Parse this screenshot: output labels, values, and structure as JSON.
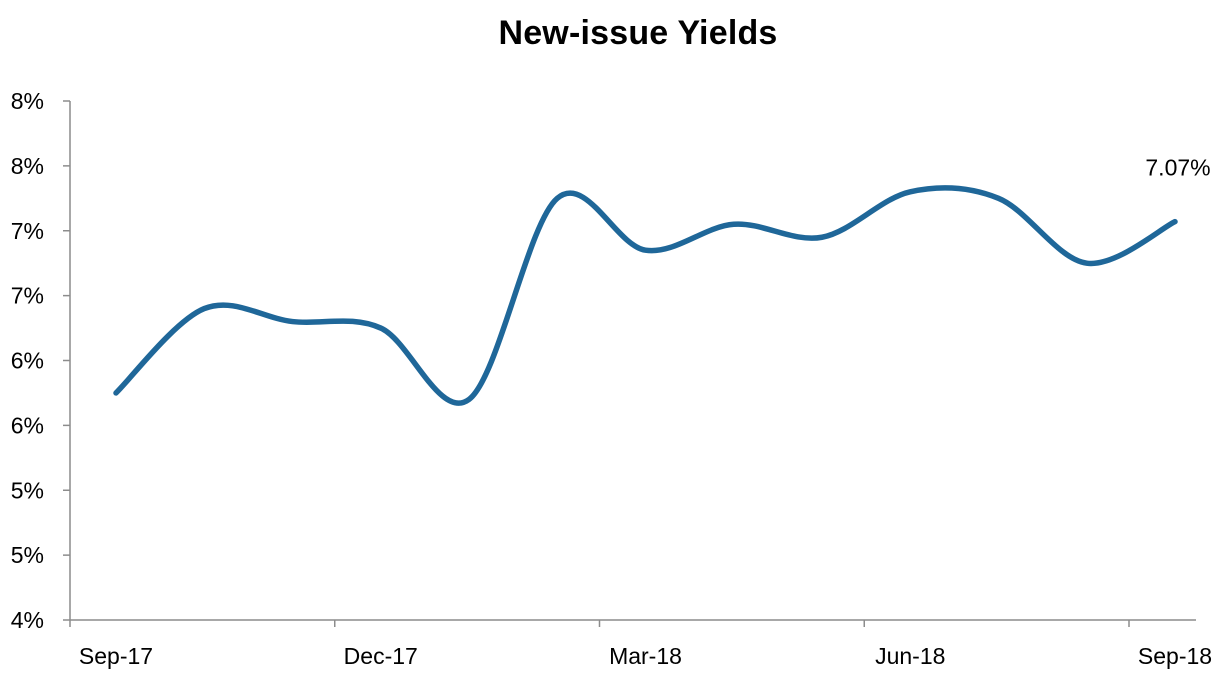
{
  "chart_data": {
    "type": "line",
    "title": "New-issue Yields",
    "xlabel": "",
    "ylabel": "",
    "x_tick_labels": [
      "Sep-17",
      "Dec-17",
      "Mar-18",
      "Jun-18",
      "Sep-18"
    ],
    "y_tick_labels": [
      "4%",
      "5%",
      "5%",
      "6%",
      "6%",
      "7%",
      "7%",
      "8%",
      "8%"
    ],
    "ylim": [
      4,
      8
    ],
    "grid": false,
    "legend": "none",
    "series": [
      {
        "color": "#1f6799",
        "x": [
          "Sep-17",
          "Oct-17",
          "Nov-17",
          "Dec-17",
          "Jan-18",
          "Feb-18",
          "Mar-18",
          "Apr-18",
          "May-18",
          "Jun-18",
          "Jul-18",
          "Aug-18",
          "Sep-18"
        ],
        "values": [
          5.75,
          6.4,
          6.3,
          6.25,
          5.7,
          7.25,
          6.85,
          7.05,
          6.95,
          7.3,
          7.25,
          6.75,
          7.07
        ]
      }
    ],
    "annotations": [
      {
        "text": "7.07%",
        "x": "Sep-18",
        "y": 7.07
      }
    ]
  }
}
